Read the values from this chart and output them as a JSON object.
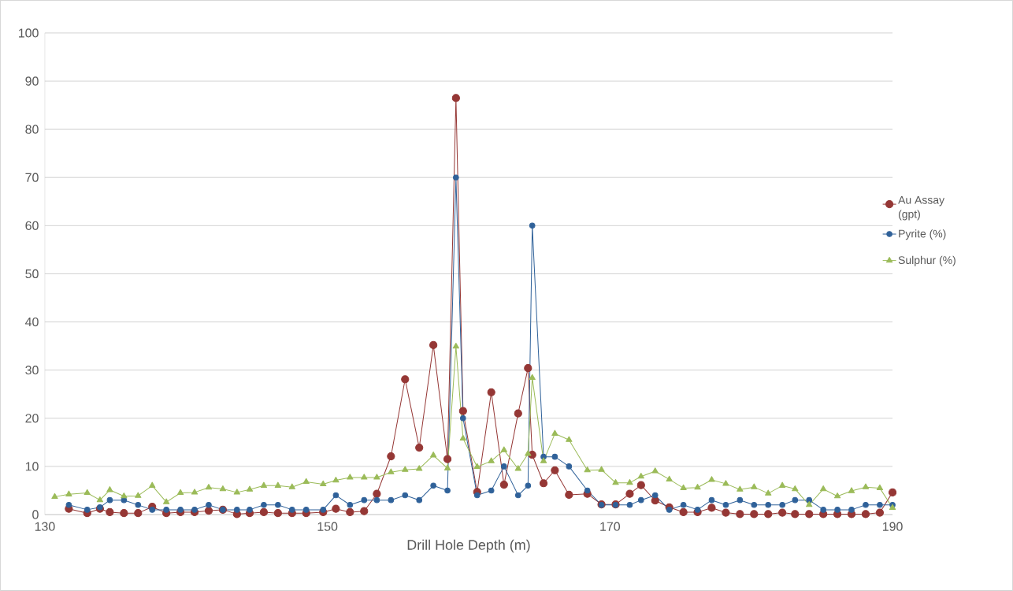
{
  "chart_data": {
    "type": "line",
    "xlabel": "Drill Hole Depth (m)",
    "xlim": [
      130,
      190
    ],
    "xticks": [
      130,
      150,
      170,
      190
    ],
    "ylim": [
      0,
      100
    ],
    "yticks": [
      0,
      10,
      20,
      30,
      40,
      50,
      60,
      70,
      80,
      90,
      100
    ],
    "grid": "y",
    "legend": "right",
    "line_style": "solid",
    "series": [
      {
        "name": "Au Assay (gpt)",
        "color": "#953735",
        "marker": "circle",
        "x": [
          131.7,
          133.0,
          133.9,
          134.6,
          135.6,
          136.6,
          137.6,
          138.6,
          139.6,
          140.6,
          141.6,
          142.6,
          143.6,
          144.5,
          145.5,
          146.5,
          147.5,
          148.5,
          149.7,
          150.6,
          151.6,
          152.6,
          153.5,
          154.5,
          155.5,
          156.5,
          157.5,
          158.5,
          159.1,
          159.6,
          160.6,
          161.6,
          162.5,
          163.5,
          164.2,
          164.5,
          165.3,
          166.1,
          167.1,
          168.4,
          169.4,
          170.4,
          171.4,
          172.2,
          173.2,
          174.2,
          175.2,
          176.2,
          177.2,
          178.2,
          179.2,
          180.2,
          181.2,
          182.2,
          183.1,
          184.1,
          185.1,
          186.1,
          187.1,
          188.1,
          189.1,
          190
        ],
        "values": [
          1.2,
          0.3,
          1.2,
          0.5,
          0.3,
          0.3,
          1.6,
          0.3,
          0.5,
          0.5,
          0.8,
          1.0,
          0.1,
          0.3,
          0.5,
          0.3,
          0.3,
          0.3,
          0.5,
          1.2,
          0.5,
          0.7,
          4.3,
          12.1,
          28.1,
          13.9,
          35.2,
          11.5,
          86.5,
          21.5,
          4.7,
          25.4,
          6.2,
          21.0,
          30.4,
          12.4,
          6.5,
          9.2,
          4.1,
          4.3,
          2.1,
          2.1,
          4.3,
          6.1,
          2.9,
          1.5,
          0.5,
          0.5,
          1.4,
          0.4,
          0.1,
          0.1,
          0.1,
          0.4,
          0.1,
          0.1,
          0.1,
          0.1,
          0.1,
          0.1,
          0.4,
          4.6
        ]
      },
      {
        "name": "Pyrite (%)",
        "color": "#2f6199",
        "marker": "circle",
        "x": [
          131.7,
          133.0,
          133.9,
          134.6,
          135.6,
          136.6,
          137.6,
          138.6,
          139.6,
          140.6,
          141.6,
          142.6,
          143.6,
          144.5,
          145.5,
          146.5,
          147.5,
          148.5,
          149.7,
          150.6,
          151.6,
          152.6,
          153.5,
          154.5,
          155.5,
          156.5,
          157.5,
          158.5,
          159.1,
          159.6,
          160.6,
          161.6,
          162.5,
          163.5,
          164.2,
          164.5,
          165.3,
          166.1,
          167.1,
          168.4,
          169.4,
          170.4,
          171.4,
          172.2,
          173.2,
          174.2,
          175.2,
          176.2,
          177.2,
          178.2,
          179.2,
          180.2,
          181.2,
          182.2,
          183.1,
          184.1,
          185.1,
          186.1,
          187.1,
          188.1,
          189.1,
          190
        ],
        "values": [
          2,
          1,
          1.5,
          3,
          3,
          2,
          1,
          1,
          1,
          1,
          2,
          1,
          1,
          1,
          2,
          2,
          1,
          1,
          1,
          4,
          2,
          3,
          3,
          3,
          4,
          3,
          6,
          5,
          70,
          20,
          4,
          5,
          10,
          4,
          6,
          60,
          12,
          12,
          10,
          5,
          2,
          2,
          2,
          3,
          4,
          1,
          2,
          1,
          3,
          2,
          3,
          2,
          2,
          2,
          3,
          3,
          1,
          1,
          1,
          2,
          2,
          2
        ]
      },
      {
        "name": "Sulphur (%)",
        "color": "#9bbb59",
        "marker": "triangle",
        "x": [
          130.7,
          131.7,
          133.0,
          133.9,
          134.6,
          135.6,
          136.6,
          137.6,
          138.6,
          139.6,
          140.6,
          141.6,
          142.6,
          143.6,
          144.5,
          145.5,
          146.5,
          147.5,
          148.5,
          149.7,
          150.6,
          151.6,
          152.6,
          153.5,
          154.5,
          155.5,
          156.5,
          157.5,
          158.5,
          159.1,
          159.6,
          160.6,
          161.6,
          162.5,
          163.5,
          164.2,
          164.5,
          165.3,
          166.1,
          167.1,
          168.4,
          169.4,
          170.4,
          171.4,
          172.2,
          173.2,
          174.2,
          175.2,
          176.2,
          177.2,
          178.2,
          179.2,
          180.2,
          181.2,
          182.2,
          183.1,
          184.1,
          185.1,
          186.1,
          187.1,
          188.1,
          189.1,
          190
        ],
        "values": [
          3.7,
          4.2,
          4.5,
          3.0,
          5.1,
          3.8,
          3.9,
          6.0,
          2.6,
          4.5,
          4.6,
          5.6,
          5.3,
          4.6,
          5.2,
          6.0,
          6.0,
          5.7,
          6.8,
          6.3,
          7.1,
          7.7,
          7.7,
          7.7,
          8.8,
          9.3,
          9.5,
          12.3,
          9.6,
          34.9,
          15.8,
          9.9,
          11.1,
          13.4,
          9.5,
          12.6,
          28.4,
          11.1,
          16.8,
          15.5,
          9.2,
          9.3,
          6.6,
          6.6,
          7.9,
          9.0,
          7.3,
          5.5,
          5.6,
          7.2,
          6.4,
          5.2,
          5.7,
          4.4,
          6.0,
          5.3,
          2.0,
          5.3,
          3.8,
          4.9,
          5.7,
          5.5,
          1.4
        ]
      }
    ]
  }
}
